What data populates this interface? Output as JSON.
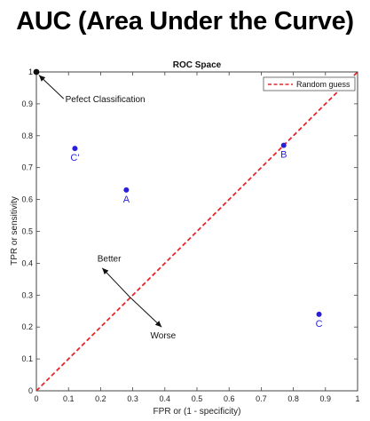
{
  "headline": "AUC (Area Under the Curve)",
  "chart_data": {
    "type": "scatter",
    "title": "ROC Space",
    "xlabel": "FPR or (1 - specificity)",
    "ylabel": "TPR or sensitivity",
    "xlim": [
      0,
      1
    ],
    "ylim": [
      0,
      1
    ],
    "xticks": [
      "0",
      "0.1",
      "0.2",
      "0.3",
      "0.4",
      "0.5",
      "0.6",
      "0.7",
      "0.8",
      "0.9",
      "1"
    ],
    "yticks": [
      "0",
      "0.1",
      "0.2",
      "0.3",
      "0.4",
      "0.5",
      "0.6",
      "0.7",
      "0.8",
      "0.9",
      "1"
    ],
    "grid": false,
    "legend": {
      "position": "top-right",
      "entries": [
        "Random guess"
      ]
    },
    "reference_line": {
      "name": "Random guess",
      "x": [
        0,
        1
      ],
      "y": [
        0,
        1
      ],
      "color": "#e8262a",
      "style": "dashed"
    },
    "points": [
      {
        "label": "",
        "x": 0.0,
        "y": 1.0,
        "color": "#111111"
      },
      {
        "label": "C'",
        "x": 0.12,
        "y": 0.76,
        "color": "#2a1fd8"
      },
      {
        "label": "A",
        "x": 0.28,
        "y": 0.63,
        "color": "#2a1fd8"
      },
      {
        "label": "B",
        "x": 0.77,
        "y": 0.77,
        "color": "#2a1fd8"
      },
      {
        "label": "C",
        "x": 0.88,
        "y": 0.24,
        "color": "#2a1fd8"
      }
    ],
    "annotations": [
      {
        "text": "Pefect Classification",
        "x": 0.09,
        "y": 0.905
      },
      {
        "text": "Better",
        "x": 0.19,
        "y": 0.405
      },
      {
        "text": "Worse",
        "x": 0.355,
        "y": 0.165
      }
    ]
  }
}
